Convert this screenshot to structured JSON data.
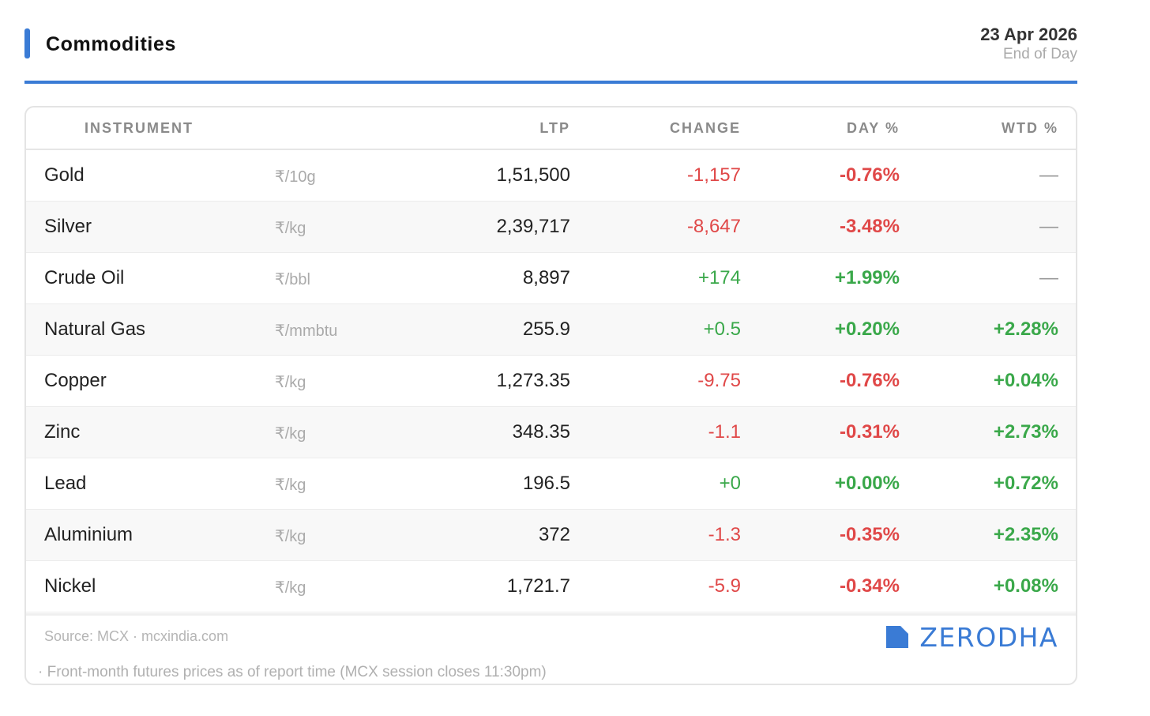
{
  "header": {
    "title": "Commodities",
    "date": "23 Apr 2026",
    "subtitle": "End of Day"
  },
  "table": {
    "columns": {
      "instrument": "INSTRUMENT",
      "ltp": "LTP",
      "change": "CHANGE",
      "day_pct": "DAY %",
      "wtd_pct": "WTD %"
    },
    "rows": [
      {
        "name": "Gold",
        "unit": "₹/10g",
        "ltp": "1,51,500",
        "change": "-1,157",
        "day_pct": "-0.76%",
        "wtd_pct": "—"
      },
      {
        "name": "Silver",
        "unit": "₹/kg",
        "ltp": "2,39,717",
        "change": "-8,647",
        "day_pct": "-3.48%",
        "wtd_pct": "—"
      },
      {
        "name": "Crude Oil",
        "unit": "₹/bbl",
        "ltp": "8,897",
        "change": "+174",
        "day_pct": "+1.99%",
        "wtd_pct": "—"
      },
      {
        "name": "Natural Gas",
        "unit": "₹/mmbtu",
        "ltp": "255.9",
        "change": "+0.5",
        "day_pct": "+0.20%",
        "wtd_pct": "+2.28%"
      },
      {
        "name": "Copper",
        "unit": "₹/kg",
        "ltp": "1,273.35",
        "change": "-9.75",
        "day_pct": "-0.76%",
        "wtd_pct": "+0.04%"
      },
      {
        "name": "Zinc",
        "unit": "₹/kg",
        "ltp": "348.35",
        "change": "-1.1",
        "day_pct": "-0.31%",
        "wtd_pct": "+2.73%"
      },
      {
        "name": "Lead",
        "unit": "₹/kg",
        "ltp": "196.5",
        "change": "+0",
        "day_pct": "+0.00%",
        "wtd_pct": "+0.72%"
      },
      {
        "name": "Aluminium",
        "unit": "₹/kg",
        "ltp": "372",
        "change": "-1.3",
        "day_pct": "-0.35%",
        "wtd_pct": "+2.35%"
      },
      {
        "name": "Nickel",
        "unit": "₹/kg",
        "ltp": "1,721.7",
        "change": "-5.9",
        "day_pct": "-0.34%",
        "wtd_pct": "+0.08%"
      }
    ]
  },
  "footer": {
    "source": "Source: MCX · mcxindia.com",
    "note": "· Front-month futures prices as of report time (MCX session closes 11:30pm)",
    "logo_text": "ZERODHA",
    "logo_icon": "zerodha-logo-icon"
  },
  "colors": {
    "accent": "#3a7bd5",
    "negative": "#e04848",
    "positive": "#3aa84a"
  }
}
